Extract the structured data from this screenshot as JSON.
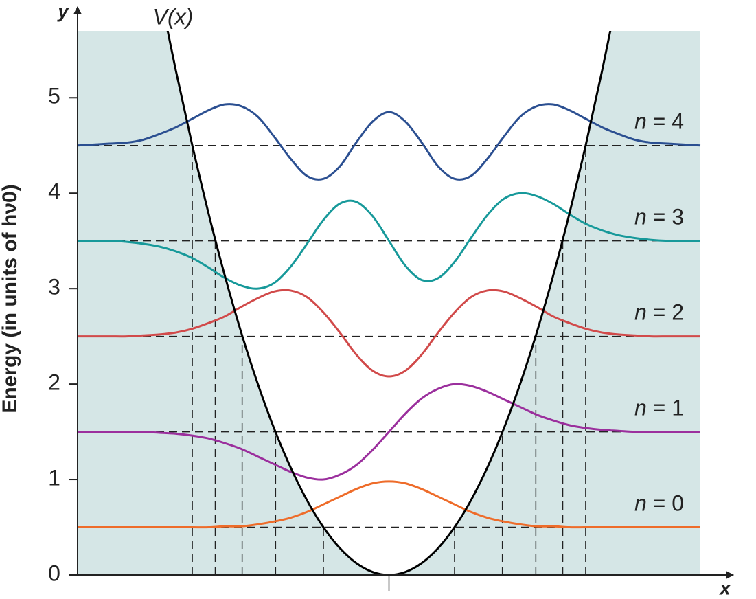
{
  "chart_data": {
    "type": "line",
    "y_label": "y",
    "x_label": "x",
    "axis_title": "Energy (in units of hν0)",
    "xlim": [
      -4.75,
      4.75
    ],
    "ylim": [
      0,
      5.7
    ],
    "yticks": [
      0,
      1,
      2,
      3,
      4,
      5
    ],
    "xticks": [
      0
    ],
    "x": [
      -4.75,
      -4.5,
      -4.25,
      -4,
      -3.75,
      -3.5,
      -3.25,
      -3,
      -2.75,
      -2.5,
      -2.25,
      -2,
      -1.75,
      -1.5,
      -1.25,
      -1,
      -0.75,
      -0.5,
      -0.25,
      0,
      0.25,
      0.5,
      0.75,
      1,
      1.25,
      1.5,
      1.75,
      2,
      2.25,
      2.5,
      2.75,
      3,
      3.25,
      3.5,
      3.75,
      4,
      4.25,
      4.5,
      4.75
    ],
    "potential": {
      "name": "V(x)",
      "color": "#000000",
      "x": [
        -3.5,
        -3.25,
        -3,
        -2.75,
        -2.5,
        -2.25,
        -2,
        -1.75,
        -1.5,
        -1.25,
        -1,
        -0.75,
        -0.5,
        -0.25,
        0,
        0.25,
        0.5,
        0.75,
        1,
        1.25,
        1.5,
        1.75,
        2,
        2.25,
        2.5,
        2.75,
        3,
        3.25,
        3.5
      ],
      "values": [
        6.125,
        5.28125,
        4.5,
        3.78125,
        3.125,
        2.53125,
        2,
        1.53125,
        1.125,
        0.78125,
        0.5,
        0.28125,
        0.125,
        0.03125,
        0,
        0.03125,
        0.125,
        0.28125,
        0.5,
        0.78125,
        1.125,
        1.53125,
        2,
        2.53125,
        3.125,
        3.78125,
        4.5,
        5.28125,
        6.125
      ]
    },
    "series": [
      {
        "name": "n = 0",
        "color": "#ee6c2a",
        "level": 0.5,
        "turning_points": [
          -1,
          1
        ],
        "values": [
          0.5,
          0.5,
          0.5,
          0.5,
          0.5,
          0.5,
          0.5,
          0.5,
          0.5,
          0.51,
          0.51,
          0.53,
          0.56,
          0.6,
          0.66,
          0.74,
          0.82,
          0.9,
          0.96,
          0.98,
          0.96,
          0.9,
          0.82,
          0.74,
          0.66,
          0.6,
          0.56,
          0.53,
          0.51,
          0.51,
          0.5,
          0.5,
          0.5,
          0.5,
          0.5,
          0.5,
          0.5,
          0.5,
          0.5
        ]
      },
      {
        "name": "n = 1",
        "color": "#9b2f9d",
        "level": 1.5,
        "turning_points": [
          -1.73,
          1.73
        ],
        "values": [
          1.5,
          1.5,
          1.5,
          1.5,
          1.5,
          1.49,
          1.48,
          1.46,
          1.43,
          1.38,
          1.32,
          1.24,
          1.16,
          1.08,
          1.02,
          1.0,
          1.05,
          1.15,
          1.31,
          1.5,
          1.69,
          1.85,
          1.95,
          2.0,
          1.98,
          1.92,
          1.84,
          1.76,
          1.68,
          1.62,
          1.57,
          1.54,
          1.52,
          1.51,
          1.5,
          1.5,
          1.5,
          1.5,
          1.5
        ]
      },
      {
        "name": "n = 2",
        "color": "#d14a4a",
        "level": 2.5,
        "turning_points": [
          -2.24,
          2.24
        ],
        "values": [
          2.5,
          2.5,
          2.5,
          2.5,
          2.51,
          2.52,
          2.54,
          2.58,
          2.64,
          2.71,
          2.81,
          2.9,
          2.97,
          2.98,
          2.91,
          2.75,
          2.54,
          2.31,
          2.14,
          2.08,
          2.14,
          2.31,
          2.54,
          2.75,
          2.91,
          2.98,
          2.97,
          2.9,
          2.81,
          2.71,
          2.64,
          2.58,
          2.54,
          2.52,
          2.51,
          2.5,
          2.5,
          2.5,
          2.5
        ]
      },
      {
        "name": "n = 3",
        "color": "#17999a",
        "level": 3.5,
        "turning_points": [
          -2.65,
          2.65
        ],
        "values": [
          3.5,
          3.5,
          3.5,
          3.49,
          3.47,
          3.44,
          3.39,
          3.32,
          3.22,
          3.11,
          3.03,
          3.0,
          3.06,
          3.23,
          3.47,
          3.72,
          3.89,
          3.91,
          3.76,
          3.5,
          3.24,
          3.09,
          3.11,
          3.28,
          3.53,
          3.77,
          3.94,
          4.0,
          3.97,
          3.89,
          3.78,
          3.68,
          3.61,
          3.56,
          3.53,
          3.51,
          3.5,
          3.5,
          3.5
        ]
      },
      {
        "name": "n = 4",
        "color": "#2b4f91",
        "level": 4.5,
        "turning_points": [
          -3,
          3
        ],
        "values": [
          4.5,
          4.51,
          4.52,
          4.53,
          4.56,
          4.62,
          4.69,
          4.78,
          4.87,
          4.93,
          4.91,
          4.8,
          4.59,
          4.36,
          4.18,
          4.15,
          4.28,
          4.53,
          4.75,
          4.85,
          4.75,
          4.53,
          4.28,
          4.15,
          4.18,
          4.36,
          4.59,
          4.8,
          4.91,
          4.93,
          4.87,
          4.78,
          4.69,
          4.62,
          4.56,
          4.53,
          4.52,
          4.51,
          4.5
        ]
      }
    ]
  }
}
